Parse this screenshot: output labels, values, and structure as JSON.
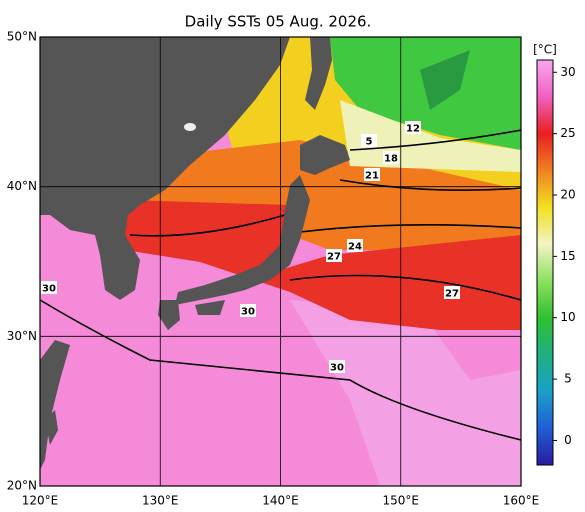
{
  "title": "Daily SSTs 05 Aug. 2026.",
  "map": {
    "lon_ticks": [
      {
        "value": 120,
        "label": "120°E"
      },
      {
        "value": 130,
        "label": "130°E"
      },
      {
        "value": 140,
        "label": "140°E"
      },
      {
        "value": 150,
        "label": "150°E"
      },
      {
        "value": 160,
        "label": "160°E"
      }
    ],
    "lat_ticks": [
      {
        "value": 50,
        "label": "50°N"
      },
      {
        "value": 40,
        "label": "40°N"
      },
      {
        "value": 30,
        "label": "30°N"
      },
      {
        "value": 20,
        "label": "20°N"
      }
    ],
    "contour_labels": [
      5,
      12,
      18,
      21,
      24,
      27,
      27,
      30,
      30,
      30
    ]
  },
  "colorbar": {
    "unit": "[°C]",
    "range": [
      -2,
      31
    ],
    "ticks": [
      0,
      5,
      10,
      15,
      20,
      25,
      30
    ],
    "colors": [
      "#2a1aa0",
      "#1f5fd6",
      "#1aa0c8",
      "#20b080",
      "#2ec030",
      "#8ee060",
      "#f2f4c4",
      "#f2e020",
      "#f08020",
      "#e82020",
      "#f060c0",
      "#f8a8f0"
    ]
  }
}
